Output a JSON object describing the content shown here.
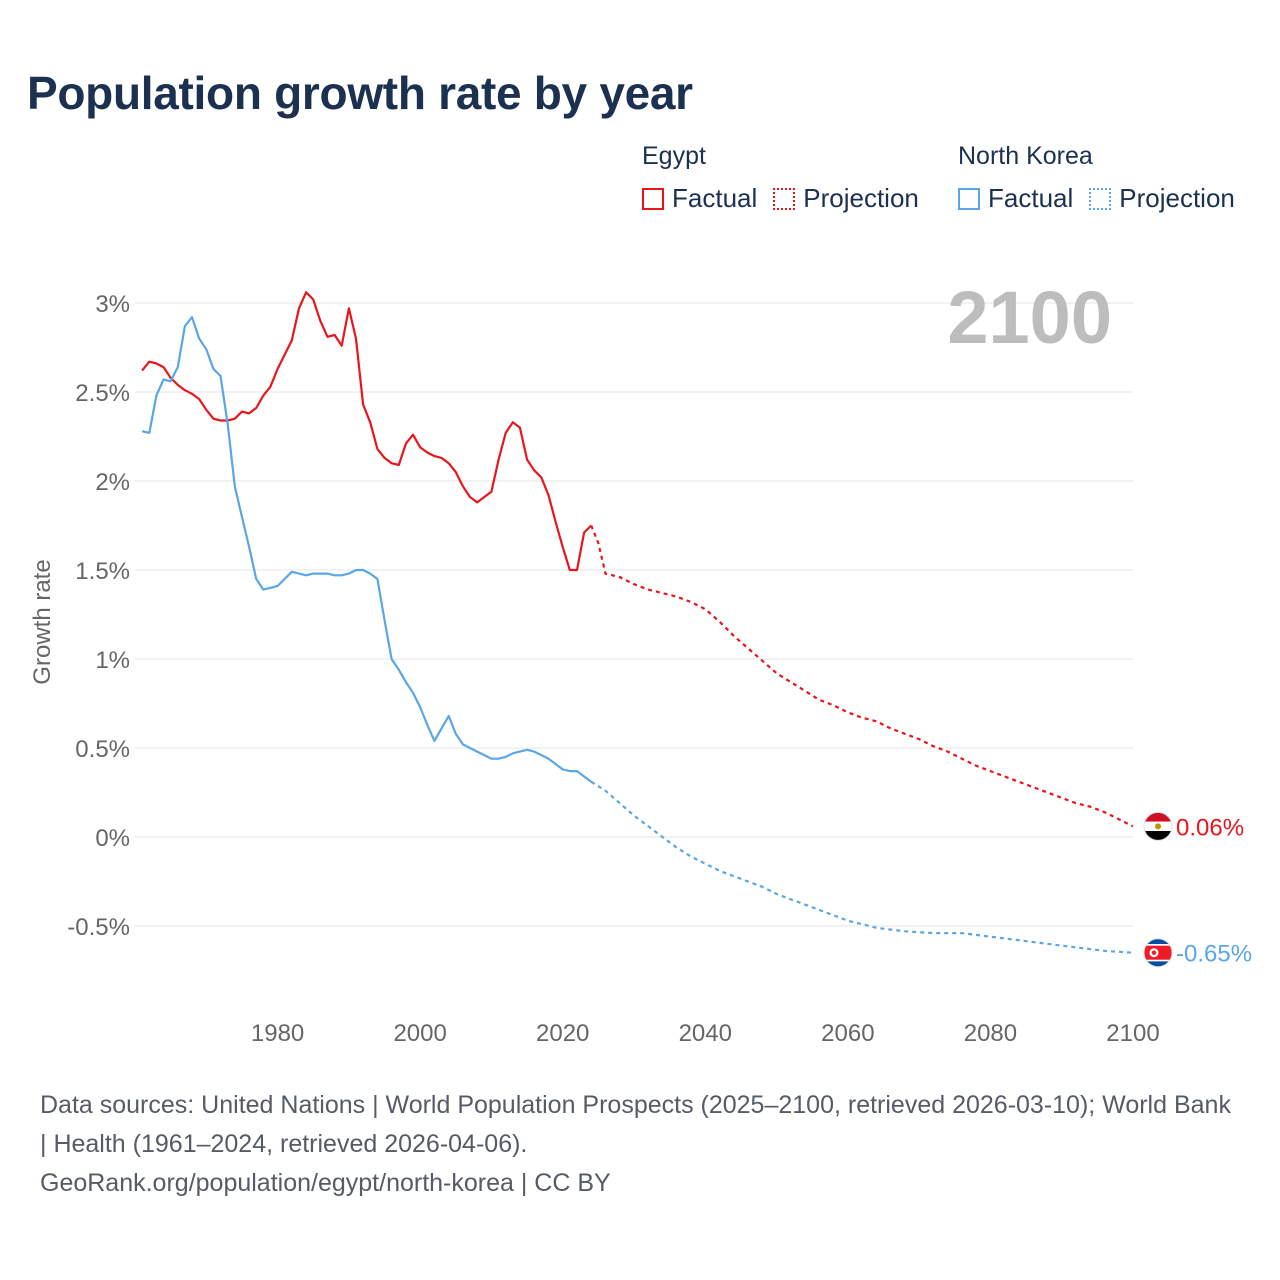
{
  "chart_data": {
    "type": "line",
    "title": "Population growth rate by year",
    "ylabel": "Growth rate",
    "xlabel": "",
    "year_overlay": "2100",
    "xlim": [
      1960,
      2100
    ],
    "ylim": [
      -0.95,
      3.25
    ],
    "x_ticks": [
      1980,
      2000,
      2020,
      2040,
      2060,
      2080,
      2100
    ],
    "y_ticks": [
      {
        "value": 3,
        "label": "3%"
      },
      {
        "value": 2.5,
        "label": "2.5%"
      },
      {
        "value": 2,
        "label": "2%"
      },
      {
        "value": 1.5,
        "label": "1.5%"
      },
      {
        "value": 1,
        "label": "1%"
      },
      {
        "value": 0.5,
        "label": "0.5%"
      },
      {
        "value": 0,
        "label": "0%"
      },
      {
        "value": -0.5,
        "label": "-0.5%"
      }
    ],
    "series": [
      {
        "name": "Egypt",
        "color": "#e8161b",
        "end_label": "0.06%",
        "flag": "egypt-flag",
        "factual": {
          "x": [
            1961,
            1962,
            1963,
            1964,
            1965,
            1966,
            1967,
            1968,
            1969,
            1970,
            1971,
            1972,
            1973,
            1974,
            1975,
            1976,
            1977,
            1978,
            1979,
            1980,
            1981,
            1982,
            1983,
            1984,
            1985,
            1986,
            1987,
            1988,
            1989,
            1990,
            1991,
            1992,
            1993,
            1994,
            1995,
            1996,
            1997,
            1998,
            1999,
            2000,
            2001,
            2002,
            2003,
            2004,
            2005,
            2006,
            2007,
            2008,
            2009,
            2010,
            2011,
            2012,
            2013,
            2014,
            2015,
            2016,
            2017,
            2018,
            2019,
            2020,
            2021,
            2022,
            2023,
            2024
          ],
          "y": [
            2.62,
            2.67,
            2.66,
            2.64,
            2.58,
            2.54,
            2.51,
            2.49,
            2.46,
            2.4,
            2.35,
            2.34,
            2.34,
            2.35,
            2.39,
            2.38,
            2.41,
            2.48,
            2.53,
            2.63,
            2.71,
            2.79,
            2.97,
            3.06,
            3.02,
            2.9,
            2.81,
            2.82,
            2.76,
            2.97,
            2.8,
            2.43,
            2.33,
            2.18,
            2.13,
            2.1,
            2.09,
            2.21,
            2.26,
            2.19,
            2.16,
            2.14,
            2.13,
            2.1,
            2.05,
            1.97,
            1.91,
            1.88,
            1.91,
            1.94,
            2.12,
            2.27,
            2.33,
            2.3,
            2.12,
            2.06,
            2.02,
            1.92,
            1.77,
            1.63,
            1.5,
            1.5,
            1.71,
            1.75
          ]
        },
        "projection": {
          "x": [
            2024,
            2025,
            2026,
            2028,
            2030,
            2032,
            2034,
            2036,
            2038,
            2040,
            2042,
            2044,
            2046,
            2048,
            2050,
            2052,
            2054,
            2056,
            2058,
            2060,
            2062,
            2064,
            2066,
            2068,
            2070,
            2072,
            2074,
            2076,
            2078,
            2080,
            2082,
            2084,
            2086,
            2088,
            2090,
            2092,
            2094,
            2096,
            2098,
            2100
          ],
          "y": [
            1.75,
            1.65,
            1.48,
            1.46,
            1.42,
            1.39,
            1.37,
            1.35,
            1.32,
            1.28,
            1.21,
            1.13,
            1.06,
            0.99,
            0.92,
            0.87,
            0.82,
            0.77,
            0.74,
            0.7,
            0.67,
            0.65,
            0.61,
            0.58,
            0.55,
            0.51,
            0.48,
            0.44,
            0.4,
            0.37,
            0.34,
            0.31,
            0.28,
            0.25,
            0.22,
            0.19,
            0.17,
            0.14,
            0.1,
            0.06
          ]
        }
      },
      {
        "name": "North Korea",
        "color": "#5aa6e6",
        "end_label": "-0.65%",
        "flag": "north-korea-flag",
        "factual": {
          "x": [
            1961,
            1962,
            1963,
            1964,
            1965,
            1966,
            1967,
            1968,
            1969,
            1970,
            1971,
            1972,
            1973,
            1974,
            1975,
            1976,
            1977,
            1978,
            1979,
            1980,
            1981,
            1982,
            1983,
            1984,
            1985,
            1986,
            1987,
            1988,
            1989,
            1990,
            1991,
            1992,
            1993,
            1994,
            1995,
            1996,
            1997,
            1998,
            1999,
            2000,
            2001,
            2002,
            2003,
            2004,
            2005,
            2006,
            2007,
            2008,
            2009,
            2010,
            2011,
            2012,
            2013,
            2014,
            2015,
            2016,
            2017,
            2018,
            2019,
            2020,
            2021,
            2022,
            2023,
            2024
          ],
          "y": [
            2.28,
            2.27,
            2.48,
            2.57,
            2.56,
            2.64,
            2.87,
            2.92,
            2.8,
            2.74,
            2.63,
            2.59,
            2.32,
            1.97,
            1.8,
            1.63,
            1.45,
            1.39,
            1.4,
            1.41,
            1.45,
            1.49,
            1.48,
            1.47,
            1.48,
            1.48,
            1.48,
            1.47,
            1.47,
            1.48,
            1.5,
            1.5,
            1.48,
            1.45,
            1.22,
            1.0,
            0.94,
            0.87,
            0.81,
            0.73,
            0.63,
            0.54,
            0.61,
            0.68,
            0.58,
            0.52,
            0.5,
            0.48,
            0.46,
            0.44,
            0.44,
            0.45,
            0.47,
            0.48,
            0.49,
            0.48,
            0.46,
            0.44,
            0.41,
            0.38,
            0.37,
            0.37,
            0.34,
            0.31
          ]
        },
        "projection": {
          "x": [
            2024,
            2026,
            2028,
            2030,
            2032,
            2034,
            2036,
            2038,
            2040,
            2042,
            2044,
            2046,
            2048,
            2050,
            2052,
            2054,
            2056,
            2058,
            2060,
            2062,
            2064,
            2066,
            2068,
            2070,
            2072,
            2074,
            2076,
            2078,
            2080,
            2082,
            2084,
            2086,
            2088,
            2090,
            2092,
            2094,
            2096,
            2098,
            2100
          ],
          "y": [
            0.31,
            0.26,
            0.19,
            0.12,
            0.06,
            0.0,
            -0.06,
            -0.11,
            -0.15,
            -0.19,
            -0.22,
            -0.25,
            -0.28,
            -0.32,
            -0.35,
            -0.38,
            -0.41,
            -0.44,
            -0.47,
            -0.49,
            -0.51,
            -0.52,
            -0.53,
            -0.535,
            -0.54,
            -0.54,
            -0.54,
            -0.55,
            -0.56,
            -0.57,
            -0.58,
            -0.59,
            -0.6,
            -0.61,
            -0.62,
            -0.63,
            -0.64,
            -0.645,
            -0.65
          ]
        }
      }
    ]
  },
  "legend": {
    "groups": [
      {
        "title": "Egypt",
        "factual_label": "Factual",
        "projection_label": "Projection",
        "color": "#e8161b"
      },
      {
        "title": "North Korea",
        "factual_label": "Factual",
        "projection_label": "Projection",
        "color": "#5aa6e6"
      }
    ]
  },
  "footer": {
    "sources": "Data sources: United Nations | World Population Prospects (2025–2100, retrieved 2026-03-10); World Bank | Health (1961–2024, retrieved 2026-04-06).",
    "credit": "GeoRank.org/population/egypt/north-korea | CC BY"
  }
}
